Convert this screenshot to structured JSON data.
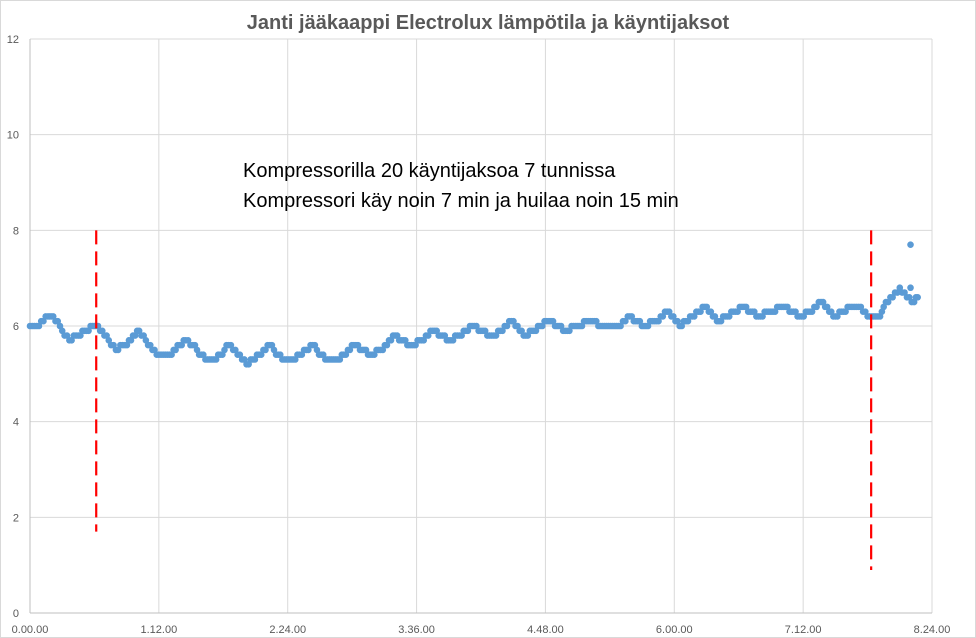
{
  "chart_data": {
    "type": "scatter",
    "title": "Janti jääkaappi Electrolux lämpötila ja käyntijaksot",
    "xlabel": "",
    "ylabel": "",
    "x_unit": "h.mm.ss elapsed time",
    "xlim_minutes": [
      0,
      504
    ],
    "ylim": [
      0,
      12
    ],
    "grid": true,
    "legend": null,
    "x_tick_labels": [
      "0.00.00",
      "1.12.00",
      "2.24.00",
      "3.36.00",
      "4.48.00",
      "6.00.00",
      "7.12.00",
      "8.24.00"
    ],
    "y_tick_labels": [
      "0",
      "2",
      "4",
      "6",
      "8",
      "10",
      "12"
    ],
    "series": [
      {
        "name": "Temperature",
        "color": "#5b9bd5",
        "points_minutes_value": [
          [
            0,
            6.0
          ],
          [
            5,
            6.0
          ],
          [
            10,
            6.2
          ],
          [
            13,
            6.2
          ],
          [
            18,
            5.9
          ],
          [
            22,
            5.7
          ],
          [
            27,
            5.8
          ],
          [
            35,
            6.0
          ],
          [
            38,
            6.0
          ],
          [
            44,
            5.7
          ],
          [
            48,
            5.5
          ],
          [
            53,
            5.6
          ],
          [
            61,
            5.9
          ],
          [
            66,
            5.6
          ],
          [
            72,
            5.4
          ],
          [
            78,
            5.4
          ],
          [
            87,
            5.7
          ],
          [
            91,
            5.6
          ],
          [
            98,
            5.3
          ],
          [
            104,
            5.3
          ],
          [
            111,
            5.6
          ],
          [
            116,
            5.4
          ],
          [
            121,
            5.2
          ],
          [
            128,
            5.4
          ],
          [
            134,
            5.6
          ],
          [
            141,
            5.3
          ],
          [
            147,
            5.3
          ],
          [
            158,
            5.6
          ],
          [
            165,
            5.3
          ],
          [
            172,
            5.3
          ],
          [
            181,
            5.6
          ],
          [
            190,
            5.4
          ],
          [
            196,
            5.5
          ],
          [
            204,
            5.8
          ],
          [
            212,
            5.6
          ],
          [
            220,
            5.7
          ],
          [
            225,
            5.9
          ],
          [
            234,
            5.7
          ],
          [
            240,
            5.8
          ],
          [
            247,
            6.0
          ],
          [
            258,
            5.8
          ],
          [
            264,
            5.9
          ],
          [
            269,
            6.1
          ],
          [
            277,
            5.8
          ],
          [
            285,
            6.0
          ],
          [
            290,
            6.1
          ],
          [
            299,
            5.9
          ],
          [
            305,
            6.0
          ],
          [
            313,
            6.1
          ],
          [
            321,
            6.0
          ],
          [
            330,
            6.0
          ],
          [
            334,
            6.2
          ],
          [
            343,
            6.0
          ],
          [
            350,
            6.1
          ],
          [
            356,
            6.3
          ],
          [
            363,
            6.0
          ],
          [
            370,
            6.2
          ],
          [
            377,
            6.4
          ],
          [
            385,
            6.1
          ],
          [
            393,
            6.3
          ],
          [
            399,
            6.4
          ],
          [
            407,
            6.2
          ],
          [
            414,
            6.3
          ],
          [
            421,
            6.4
          ],
          [
            430,
            6.2
          ],
          [
            437,
            6.3
          ],
          [
            442,
            6.5
          ],
          [
            450,
            6.2
          ],
          [
            458,
            6.4
          ],
          [
            463,
            6.4
          ],
          [
            468,
            6.2
          ],
          [
            475,
            6.2
          ],
          [
            477,
            6.4
          ],
          [
            482,
            6.6
          ],
          [
            486,
            6.8
          ],
          [
            490,
            6.6
          ],
          [
            494,
            6.5
          ],
          [
            496,
            6.6
          ],
          [
            492,
            6.8
          ],
          [
            492,
            7.7
          ]
        ]
      }
    ],
    "annotations": {
      "lines": [
        "Kompressorilla 20 käyntijaksoa 7 tunnissa",
        "Kompressori käy noin 7 min ja huilaa noin 15 min"
      ],
      "cycle_markers": [
        {
          "x_minutes": 37,
          "y_from": 1.7,
          "y_to": 8.0,
          "color": "#ff0000",
          "style": "dashed"
        },
        {
          "x_minutes": 470,
          "y_from": 0.9,
          "y_to": 8.0,
          "color": "#ff0000",
          "style": "dashed"
        }
      ]
    }
  },
  "colors": {
    "series": "#5b9bd5",
    "marker_line": "#ff0000",
    "grid": "#d9d9d9",
    "axis_text": "#595959",
    "title": "#595959"
  }
}
